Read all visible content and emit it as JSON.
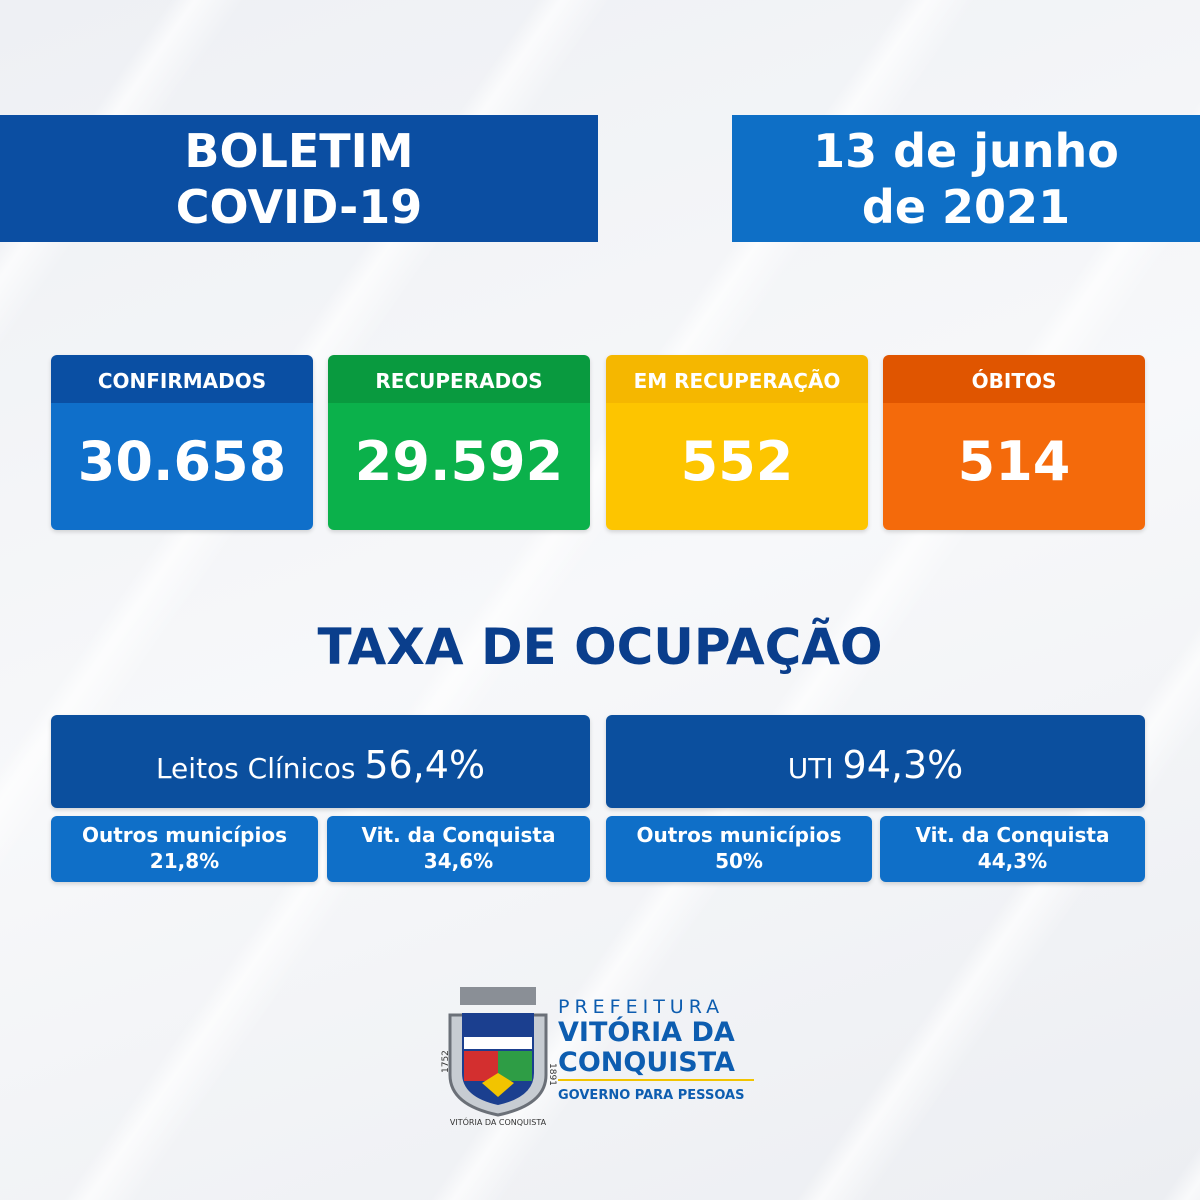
{
  "header": {
    "title": [
      "BOLETIM",
      "COVID-19"
    ],
    "date": [
      "13 de junho",
      "de 2021"
    ]
  },
  "cards": [
    {
      "label": "CONFIRMADOS",
      "value": "30.658"
    },
    {
      "label": "RECUPERADOS",
      "value": "29.592"
    },
    {
      "label": "EM RECUPERAÇÃO",
      "value": "552"
    },
    {
      "label": "ÓBITOS",
      "value": "514"
    }
  ],
  "occupancy": {
    "title": "TAXA DE OCUPAÇÃO",
    "panels": [
      {
        "label": "Leitos Clínicos",
        "value": "56,4%",
        "parts": [
          {
            "label": "Outros municípios",
            "value": "21,8%"
          },
          {
            "label": "Vit. da Conquista",
            "value": "34,6%"
          }
        ]
      },
      {
        "label": "UTI",
        "value": "94,3%",
        "parts": [
          {
            "label": "Outros municípios",
            "value": "50%"
          },
          {
            "label": "Vit. da Conquista",
            "value": "44,3%"
          }
        ]
      }
    ]
  },
  "logo": {
    "top": "PREFEITURA",
    "name": [
      "VITÓRIA DA",
      "CONQUISTA"
    ],
    "slogan": "GOVERNO PARA PESSOAS",
    "crest": {
      "left_year": "1752",
      "right_year": "1891",
      "motto": "VITÓRIA DA CONQUISTA"
    }
  }
}
